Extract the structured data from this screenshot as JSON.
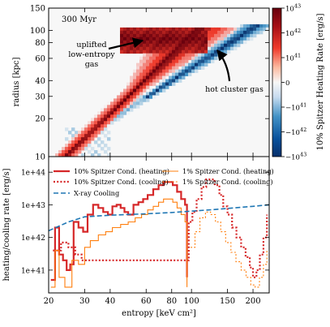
{
  "chart_data": [
    {
      "type": "heatmap",
      "panel": "top",
      "annotation_time": "300 Myr",
      "ylabel": "radius [kpc]",
      "yscale": "log",
      "ylim": [
        10,
        150
      ],
      "ytick_labels": [
        "10",
        "20",
        "30",
        "40",
        "60",
        "80",
        "100",
        "150"
      ],
      "xscale": "log",
      "xlim": [
        20,
        240
      ],
      "colorbar": {
        "label": "10% Spitzer Heating Rate [erg/s]",
        "scale": "symlog",
        "ticks": [
          "10^43",
          "10^42",
          "10^41",
          "0",
          "−10^41",
          "−10^42",
          "−10^43"
        ],
        "colors": {
          "positive": "#a50f15",
          "zero": "#f7f7f7",
          "negative": "#08306b"
        }
      },
      "annotations": [
        {
          "text": "uplifted low-entropy gas",
          "lines": [
            "uplifted",
            "low-entropy",
            "gas"
          ]
        },
        {
          "text": "hot cluster gas"
        }
      ],
      "regions": [
        {
          "name": "heated",
          "sign": "positive",
          "entropy_range": [
            20,
            130
          ],
          "radius_range": [
            10,
            100
          ]
        },
        {
          "name": "cooled",
          "sign": "negative",
          "entropy_range": [
            30,
            220
          ],
          "radius_range": [
            12,
            110
          ]
        }
      ]
    },
    {
      "type": "line",
      "panel": "bottom",
      "xlabel": "entropy [keV cm²]",
      "ylabel": "heating/cooling rate [erg/s]",
      "xscale": "log",
      "yscale": "log",
      "xlim": [
        20,
        240
      ],
      "ylim": [
        2e+40,
        3e+44
      ],
      "x_tick_labels": [
        "20",
        "30",
        "40",
        "60",
        "80",
        "100",
        "150",
        "200"
      ],
      "x_tick_values": [
        20,
        30,
        40,
        60,
        80,
        100,
        150,
        200
      ],
      "y_tick_labels": [
        "1e+41",
        "1e+42",
        "1e+43",
        "1e+44"
      ],
      "y_tick_values": [
        1e+41,
        1e+42,
        1e+43,
        1e+44
      ],
      "legend": "top",
      "series": [
        {
          "name": "10% Spitzer Cond. (heating)",
          "color": "#d62728",
          "style": "solid",
          "points": [
            [
              20.5,
              5e+40
            ],
            [
              21.5,
              2e+42
            ],
            [
              22.5,
              3e+41
            ],
            [
              23.5,
              2e+41
            ],
            [
              24.5,
              1e+41
            ],
            [
              25.5,
              1.5e+41
            ],
            [
              26.5,
              3e+42
            ],
            [
              28,
              2e+42
            ],
            [
              29.5,
              1.5e+42
            ],
            [
              31,
              5e+42
            ],
            [
              33,
              1e+43
            ],
            [
              35,
              8e+42
            ],
            [
              37,
              6e+42
            ],
            [
              39,
              5e+42
            ],
            [
              41,
              9e+42
            ],
            [
              43,
              1e+43
            ],
            [
              45,
              8e+42
            ],
            [
              47,
              6e+42
            ],
            [
              49,
              5e+42
            ],
            [
              52,
              1e+43
            ],
            [
              55,
              1.2e+43
            ],
            [
              58,
              1.5e+43
            ],
            [
              61,
              2e+43
            ],
            [
              65,
              3e+43
            ],
            [
              69,
              4e+43
            ],
            [
              73,
              5e+43
            ],
            [
              77,
              5e+43
            ],
            [
              81,
              4e+43
            ],
            [
              85,
              2.5e+43
            ],
            [
              89,
              1.5e+43
            ],
            [
              93,
              1e+43
            ],
            [
              95,
              6e+40
            ]
          ]
        },
        {
          "name": "10% Spitzer Cond. (cooling)",
          "color": "#d62728",
          "style": "dotted",
          "points": [
            [
              21,
              4e+41
            ],
            [
              23,
              7e+41
            ],
            [
              25,
              5e+41
            ],
            [
              27,
              3e+41
            ],
            [
              29,
              2e+41
            ],
            [
              97,
              3e+42
            ],
            [
              101,
              6e+42
            ],
            [
              106,
              1.5e+43
            ],
            [
              112,
              3.5e+43
            ],
            [
              118,
              6e+43
            ],
            [
              124,
              6e+43
            ],
            [
              130,
              4e+43
            ],
            [
              137,
              2e+43
            ],
            [
              143,
              9e+42
            ],
            [
              150,
              5e+42
            ],
            [
              158,
              2e+42
            ],
            [
              166,
              1e+42
            ],
            [
              175,
              5e+41
            ],
            [
              184,
              2.5e+41
            ],
            [
              193,
              1.2e+41
            ],
            [
              200,
              6e+40
            ],
            [
              208,
              1e+41
            ],
            [
              216,
              3e+41
            ],
            [
              225,
              1e+42
            ],
            [
              234,
              5e+42
            ]
          ]
        },
        {
          "name": "1% Spitzer Cond. (heating)",
          "color": "#ff7f0e",
          "style": "solid",
          "points": [
            [
              20.5,
              3e+40
            ],
            [
              21.5,
              4e+41
            ],
            [
              22.5,
              6e+40
            ],
            [
              24,
              3e+40
            ],
            [
              26,
              2e+41
            ],
            [
              28,
              1.5e+41
            ],
            [
              30,
              5e+41
            ],
            [
              32,
              8e+41
            ],
            [
              35,
              1.2e+42
            ],
            [
              38,
              1.5e+42
            ],
            [
              41,
              2e+42
            ],
            [
              45,
              2.5e+42
            ],
            [
              49,
              3e+42
            ],
            [
              53,
              4e+42
            ],
            [
              57,
              5e+42
            ],
            [
              61,
              7e+42
            ],
            [
              65,
              9e+42
            ],
            [
              69,
              1.2e+43
            ],
            [
              73,
              1.5e+43
            ],
            [
              77,
              1.5e+43
            ],
            [
              81,
              1.2e+43
            ],
            [
              85,
              8e+42
            ],
            [
              89,
              5e+42
            ],
            [
              93,
              3e+42
            ],
            [
              95,
              3e+40
            ]
          ]
        },
        {
          "name": "1% Spitzer Cond. (cooling)",
          "color": "#ff7f0e",
          "style": "dotted",
          "points": [
            [
              99,
              5e+41
            ],
            [
              104,
              1.5e+42
            ],
            [
              110,
              4e+42
            ],
            [
              117,
              6e+42
            ],
            [
              124,
              5e+42
            ],
            [
              131,
              3e+42
            ],
            [
              139,
              1.5e+42
            ],
            [
              147,
              7e+41
            ],
            [
              156,
              3.5e+41
            ],
            [
              165,
              1.8e+41
            ],
            [
              175,
              1e+41
            ],
            [
              185,
              6e+40
            ],
            [
              195,
              3.5e+40
            ],
            [
              205,
              3e+40
            ],
            [
              215,
              6e+40
            ],
            [
              225,
              1.5e+41
            ],
            [
              234,
              4e+41
            ]
          ]
        },
        {
          "name": "X-ray Cooling",
          "color": "#1f77b4",
          "style": "dashed",
          "points": [
            [
              20,
              1.6e+42
            ],
            [
              25,
              3e+42
            ],
            [
              30,
              4.3e+42
            ],
            [
              40,
              4.8e+42
            ],
            [
              60,
              5.3e+42
            ],
            [
              80,
              5.8e+42
            ],
            [
              100,
              6.4e+42
            ],
            [
              130,
              7.2e+42
            ],
            [
              160,
              8e+42
            ],
            [
              200,
              9e+42
            ],
            [
              240,
              1e+43
            ]
          ]
        }
      ]
    }
  ]
}
